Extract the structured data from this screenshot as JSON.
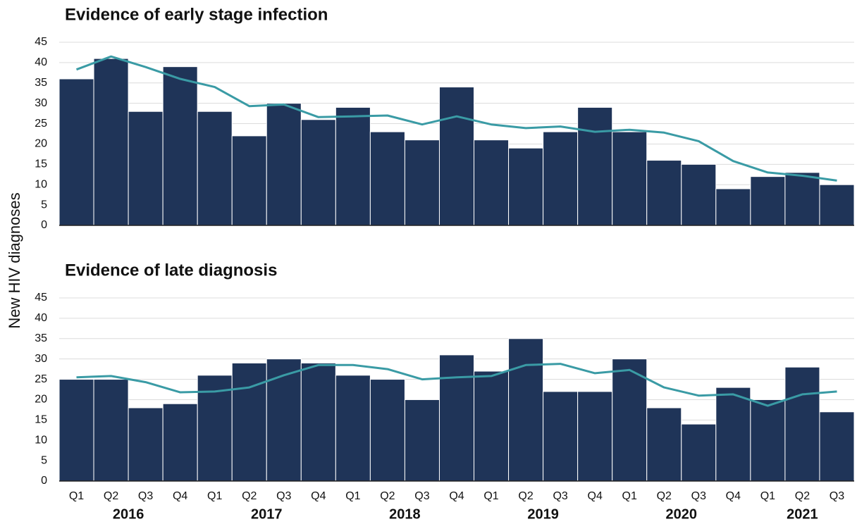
{
  "y_label": "New HIV diagnoses",
  "chart_data": [
    {
      "type": "bar",
      "title": "Evidence of early stage infection",
      "ylim": [
        0,
        45
      ],
      "yticks": [
        0,
        5,
        10,
        15,
        20,
        25,
        30,
        35,
        40,
        45
      ],
      "grid": true,
      "series": [
        {
          "type": "bar",
          "color": "#1f3458",
          "values": [
            36,
            41,
            28,
            39,
            28,
            22,
            30,
            26,
            29,
            23,
            21,
            34,
            21,
            19,
            23,
            29,
            23,
            16,
            15,
            9,
            12,
            13,
            10
          ]
        },
        {
          "type": "line",
          "color": "#3a9ba5",
          "values": [
            38.3,
            41.5,
            38.9,
            36,
            34,
            29.3,
            29.7,
            26.6,
            26.8,
            27,
            24.8,
            26.8,
            24.8,
            23.9,
            24.3,
            23,
            23.5,
            22.8,
            20.7,
            15.8,
            13,
            12.2,
            11
          ]
        }
      ]
    },
    {
      "type": "bar",
      "title": "Evidence of late diagnosis",
      "categories": [
        "Q1",
        "Q2",
        "Q3",
        "Q4",
        "Q1",
        "Q2",
        "Q3",
        "Q4",
        "Q1",
        "Q2",
        "Q3",
        "Q4",
        "Q1",
        "Q2",
        "Q3",
        "Q4",
        "Q1",
        "Q2",
        "Q3",
        "Q4",
        "Q1",
        "Q2",
        "Q3"
      ],
      "x_groups": [
        "2016",
        "2017",
        "2018",
        "2019",
        "2020",
        "2021"
      ],
      "ylim": [
        0,
        45
      ],
      "yticks": [
        0,
        5,
        10,
        15,
        20,
        25,
        30,
        35,
        40,
        45
      ],
      "grid": true,
      "series": [
        {
          "type": "bar",
          "color": "#1f3458",
          "values": [
            25,
            25,
            18,
            19,
            26,
            29,
            30,
            29,
            26,
            25,
            20,
            31,
            27,
            35,
            22,
            22,
            30,
            18,
            14,
            23,
            20,
            28,
            17
          ]
        },
        {
          "type": "line",
          "color": "#3a9ba5",
          "values": [
            25.5,
            25.8,
            24.3,
            21.8,
            22,
            23,
            26,
            28.5,
            28.5,
            27.5,
            25,
            25.5,
            25.8,
            28.5,
            28.8,
            26.5,
            27.3,
            23,
            21,
            21.3,
            18.5,
            21.3,
            22
          ]
        }
      ]
    }
  ]
}
